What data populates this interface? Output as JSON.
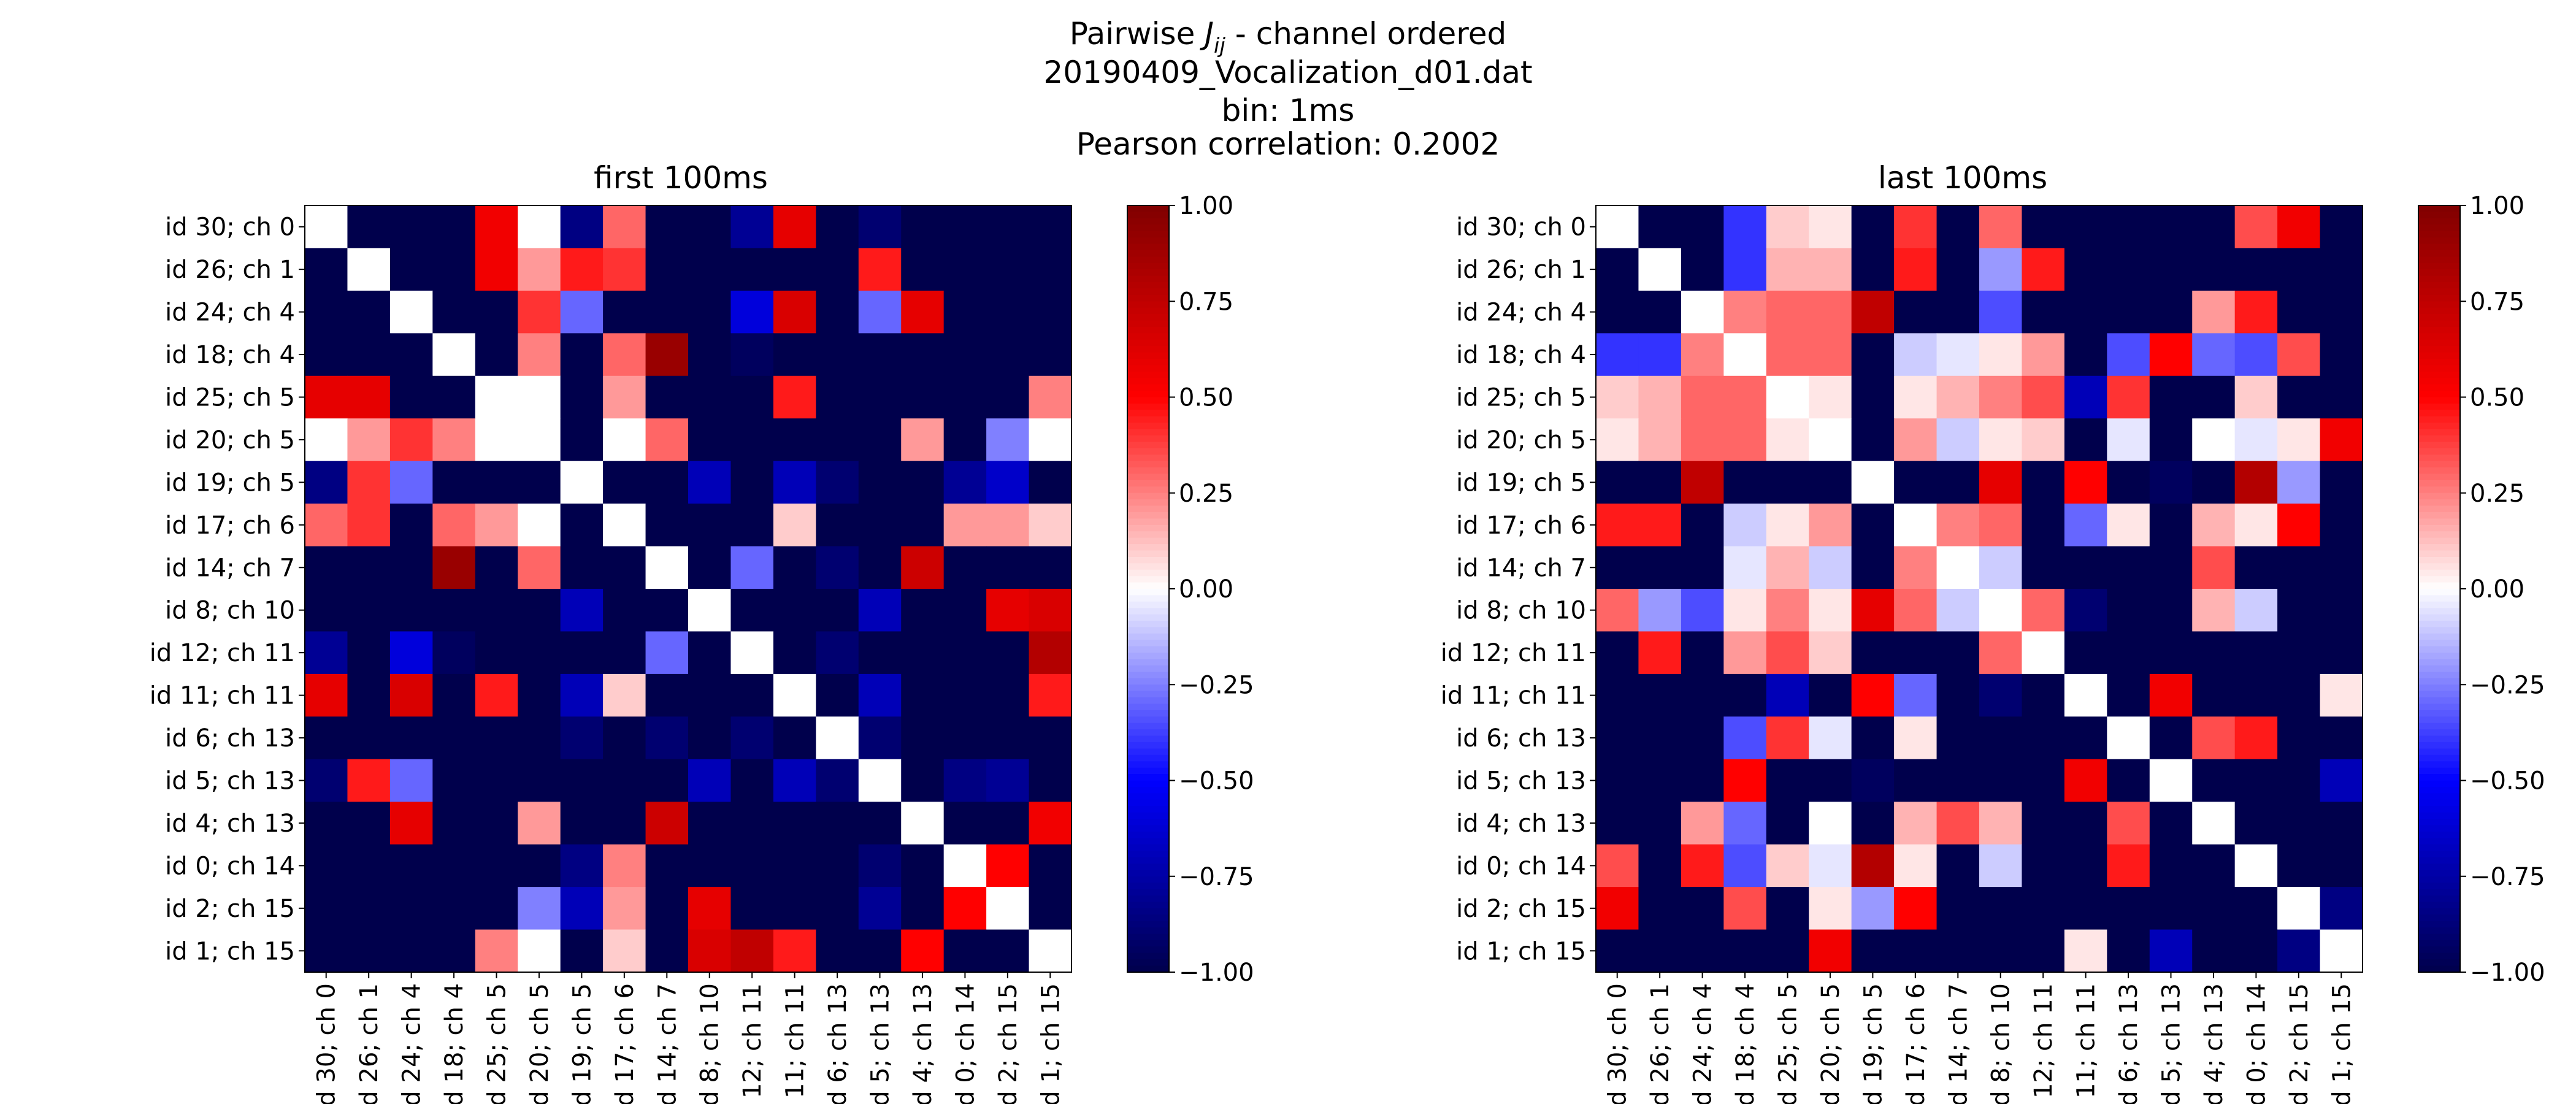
{
  "figure": {
    "suptitle": {
      "line1_prefix": "Pairwise ",
      "line1_symbol": "J",
      "line1_subscript": "ij",
      "line1_suffix": " - channel ordered",
      "line2": "20190409_Vocalization_d01.dat",
      "line3": "bin: 1ms",
      "line4": "Pearson correlation: 0.2002"
    },
    "colormap": "seismic",
    "colors": {
      "low": "#00004c",
      "mid_low": "#0000ff",
      "center": "#ffffff",
      "mid_high": "#ff0000",
      "high": "#800000"
    }
  },
  "chart_data": [
    {
      "type": "heatmap",
      "title": "first 100ms",
      "labels": [
        "id 30; ch 0",
        "id 26; ch 1",
        "id 24; ch 4",
        "id 18; ch 4",
        "id 25; ch 5",
        "id 20; ch 5",
        "id 19; ch 5",
        "id 17; ch 6",
        "id 14; ch 7",
        "id 8; ch 10",
        "id 12; ch 11",
        "id 11; ch 11",
        "id 6; ch 13",
        "id 5; ch 13",
        "id 4; ch 13",
        "id 0; ch 14",
        "id 2; ch 15",
        "id 1; ch 15"
      ],
      "zlim": [
        -1,
        1
      ],
      "colorbar_ticks": [
        "1.00",
        "0.75",
        "0.50",
        "0.25",
        "0.00",
        "−0.25",
        "−0.50",
        "−0.75",
        "−1.00"
      ],
      "matrix": [
        [
          0,
          -1,
          -1,
          -1,
          0.55,
          0,
          -0.85,
          0.3,
          -1,
          -1,
          -0.8,
          0.6,
          -1,
          -0.9,
          -1,
          -1,
          -1,
          -1
        ],
        [
          -1,
          0,
          -1,
          -1,
          0.55,
          0.2,
          0.45,
          0.4,
          -1,
          -1,
          -1,
          -1,
          -1,
          0.45,
          -1,
          -1,
          -1,
          -1
        ],
        [
          -1,
          -1,
          0,
          -1,
          -1,
          0.4,
          -0.3,
          -1,
          -1,
          -1,
          -0.6,
          0.65,
          -1,
          -0.3,
          0.6,
          -1,
          -1,
          -1
        ],
        [
          -1,
          -1,
          -1,
          0,
          -1,
          0.25,
          -1,
          0.3,
          0.9,
          -1,
          -0.95,
          -1,
          -1,
          -1,
          -1,
          -1,
          -1,
          -1
        ],
        [
          0.6,
          0.6,
          -1,
          -1,
          0,
          0,
          -1,
          0.2,
          -1,
          -1,
          -1,
          0.45,
          -1,
          -1,
          -1,
          -1,
          -1,
          0.25
        ],
        [
          0,
          0.2,
          0.4,
          0.25,
          0,
          0,
          -1,
          0,
          0.3,
          -1,
          -1,
          -1,
          -1,
          -1,
          0.2,
          -1,
          -0.25,
          0
        ],
        [
          -0.85,
          0.4,
          -0.3,
          -1,
          -1,
          -1,
          0,
          -1,
          -1,
          -0.7,
          -1,
          -0.7,
          -0.9,
          -1,
          -1,
          -0.8,
          -0.65,
          -1
        ],
        [
          0.3,
          0.4,
          -1,
          0.3,
          0.2,
          0,
          -1,
          0,
          -1,
          -1,
          -1,
          0.1,
          -1,
          -1,
          -1,
          0.2,
          0.2,
          0.1
        ],
        [
          -1,
          -1,
          -1,
          0.9,
          -1,
          0.3,
          -1,
          -1,
          0,
          -1,
          -0.3,
          -1,
          -0.9,
          -1,
          0.7,
          -1,
          -1,
          -1
        ],
        [
          -1,
          -1,
          -1,
          -1,
          -1,
          -1,
          -0.7,
          -1,
          -1,
          0,
          -1,
          -1,
          -1,
          -0.7,
          -1,
          -1,
          0.6,
          0.65
        ],
        [
          -0.8,
          -1,
          -0.6,
          -0.95,
          -1,
          -1,
          -1,
          -1,
          -0.3,
          -1,
          0,
          -1,
          -0.9,
          -1,
          -1,
          -1,
          -1,
          0.8
        ],
        [
          0.6,
          -1,
          0.65,
          -1,
          0.45,
          -1,
          -0.7,
          0.1,
          -1,
          -1,
          -1,
          0,
          -1,
          -0.7,
          -1,
          -1,
          -1,
          0.45
        ],
        [
          -1,
          -1,
          -1,
          -1,
          -1,
          -1,
          -0.9,
          -1,
          -0.9,
          -1,
          -0.9,
          -1,
          0,
          -0.9,
          -1,
          -1,
          -1,
          -1
        ],
        [
          -0.9,
          0.45,
          -0.3,
          -1,
          -1,
          -1,
          -1,
          -1,
          -1,
          -0.7,
          -1,
          -0.7,
          -0.9,
          0,
          -1,
          -0.85,
          -0.8,
          -1
        ],
        [
          -1,
          -1,
          0.6,
          -1,
          -1,
          0.2,
          -1,
          -1,
          0.7,
          -1,
          -1,
          -1,
          -1,
          -1,
          0,
          -1,
          -1,
          0.55
        ],
        [
          -1,
          -1,
          -1,
          -1,
          -1,
          -1,
          -0.85,
          0.25,
          -1,
          -1,
          -1,
          -1,
          -1,
          -0.9,
          -1,
          0,
          0.5,
          -1
        ],
        [
          -1,
          -1,
          -1,
          -1,
          -1,
          -0.25,
          -0.7,
          0.2,
          -1,
          0.6,
          -1,
          -1,
          -1,
          -0.8,
          -1,
          0.5,
          0,
          -1
        ],
        [
          -1,
          -1,
          -1,
          -1,
          0.25,
          0,
          -1,
          0.1,
          -1,
          0.65,
          0.75,
          0.45,
          -1,
          -1,
          0.5,
          -1,
          -1,
          0
        ]
      ]
    },
    {
      "type": "heatmap",
      "title": "last 100ms",
      "labels": [
        "id 30; ch 0",
        "id 26; ch 1",
        "id 24; ch 4",
        "id 18; ch 4",
        "id 25; ch 5",
        "id 20; ch 5",
        "id 19; ch 5",
        "id 17; ch 6",
        "id 14; ch 7",
        "id 8; ch 10",
        "id 12; ch 11",
        "id 11; ch 11",
        "id 6; ch 13",
        "id 5; ch 13",
        "id 4; ch 13",
        "id 0; ch 14",
        "id 2; ch 15",
        "id 1; ch 15"
      ],
      "zlim": [
        -1,
        1
      ],
      "colorbar_ticks": [
        "1.00",
        "0.75",
        "0.50",
        "0.25",
        "0.00",
        "−0.25",
        "−0.50",
        "−0.75",
        "−1.00"
      ],
      "matrix": [
        [
          0,
          -1,
          -1,
          -0.4,
          0.1,
          0.05,
          -1,
          0.4,
          -1,
          0.3,
          -1,
          -1,
          -1,
          -1,
          -1,
          0.35,
          0.55,
          -1
        ],
        [
          -1,
          0,
          -1,
          -0.4,
          0.15,
          0.15,
          -1,
          0.45,
          -1,
          -0.2,
          0.45,
          -1,
          -1,
          -1,
          -1,
          -1,
          -1,
          -1
        ],
        [
          -1,
          -1,
          0,
          0.25,
          0.3,
          0.3,
          0.75,
          -1,
          -1,
          -0.35,
          -1,
          -1,
          -1,
          -1,
          0.2,
          0.45,
          -1,
          -1
        ],
        [
          -0.4,
          -0.4,
          0.25,
          0,
          0.3,
          0.3,
          -1,
          -0.1,
          -0.05,
          0.05,
          0.2,
          -1,
          -0.35,
          0.5,
          -0.3,
          -0.35,
          0.35,
          -1
        ],
        [
          0.1,
          0.15,
          0.3,
          0.3,
          0,
          0.05,
          -1,
          0.05,
          0.15,
          0.25,
          0.35,
          -0.7,
          0.4,
          -1,
          -1,
          0.1,
          -1,
          -1
        ],
        [
          0.05,
          0.15,
          0.3,
          0.3,
          0.05,
          0,
          -1,
          0.2,
          -0.1,
          0.05,
          0.1,
          -1,
          -0.05,
          -1,
          0,
          -0.05,
          0.05,
          0.55
        ],
        [
          -1,
          -1,
          0.75,
          -1,
          -1,
          -1,
          0,
          -1,
          -1,
          0.6,
          -1,
          0.5,
          -1,
          -0.95,
          -1,
          0.8,
          -0.2,
          -1
        ],
        [
          0.45,
          0.45,
          -1,
          -0.1,
          0.05,
          0.2,
          -1,
          0,
          0.25,
          0.3,
          -1,
          -0.3,
          0.05,
          -1,
          0.15,
          0.05,
          0.5,
          -1
        ],
        [
          -1,
          -1,
          -1,
          -0.05,
          0.15,
          -0.1,
          -1,
          0.25,
          0,
          -0.1,
          -1,
          -1,
          -1,
          -1,
          0.35,
          -1,
          -1,
          -1
        ],
        [
          0.3,
          -0.2,
          -0.35,
          0.05,
          0.25,
          0.05,
          0.6,
          0.3,
          -0.1,
          0,
          0.3,
          -0.9,
          -1,
          -1,
          0.15,
          -0.1,
          -1,
          -1
        ],
        [
          -1,
          0.45,
          -1,
          0.2,
          0.35,
          0.1,
          -1,
          -1,
          -1,
          0.3,
          0,
          -1,
          -1,
          -1,
          -1,
          -1,
          -1,
          -1
        ],
        [
          -1,
          -1,
          -1,
          -1,
          -0.7,
          -1,
          0.5,
          -0.3,
          -1,
          -0.9,
          -1,
          0,
          -1,
          0.55,
          -1,
          -1,
          -1,
          0.05
        ],
        [
          -1,
          -1,
          -1,
          -0.35,
          0.4,
          -0.05,
          -1,
          0.05,
          -1,
          -1,
          -1,
          -1,
          0,
          -1,
          0.35,
          0.45,
          -1,
          -1
        ],
        [
          -1,
          -1,
          -1,
          0.5,
          -1,
          -1,
          -0.95,
          -1,
          -1,
          -1,
          -1,
          0.55,
          -1,
          0,
          -1,
          -1,
          -1,
          -0.7
        ],
        [
          -1,
          -1,
          0.2,
          -0.3,
          -1,
          0,
          -1,
          0.15,
          0.35,
          0.15,
          -1,
          -1,
          0.35,
          -1,
          0,
          -1,
          -1,
          -1
        ],
        [
          0.35,
          -1,
          0.45,
          -0.35,
          0.1,
          -0.05,
          0.8,
          0.05,
          -1,
          -0.1,
          -1,
          -1,
          0.45,
          -1,
          -1,
          0,
          -1,
          -1
        ],
        [
          0.55,
          -1,
          -1,
          0.35,
          -1,
          0.05,
          -0.2,
          0.5,
          -1,
          -1,
          -1,
          -1,
          -1,
          -1,
          -1,
          -1,
          0,
          -0.85
        ],
        [
          -1,
          -1,
          -1,
          -1,
          -1,
          0.55,
          -1,
          -1,
          -1,
          -1,
          -1,
          0.05,
          -1,
          -0.7,
          -1,
          -1,
          -0.85,
          0
        ]
      ]
    }
  ]
}
